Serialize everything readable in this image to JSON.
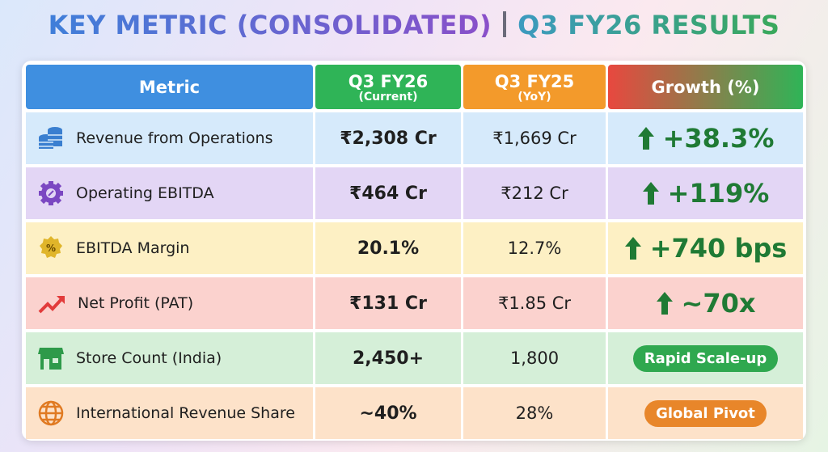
{
  "header": {
    "title_left": "KEY METRIC (CONSOLIDATED)",
    "title_right": "Q3 FY26 RESULTS"
  },
  "table": {
    "columns": [
      {
        "label": "Metric"
      },
      {
        "label": "Q3 FY26",
        "sub": "(Current)"
      },
      {
        "label": "Q3 FY25",
        "sub": "(YoY)"
      },
      {
        "label": "Growth (%)"
      }
    ],
    "rows": [
      {
        "metric": "Revenue from Operations",
        "current": "₹2,308 Cr",
        "previous": "₹1,669 Cr",
        "growth": "+38.3%",
        "growth_kind": "arrow"
      },
      {
        "metric": "Operating EBITDA",
        "current": "₹464 Cr",
        "previous": "₹212 Cr",
        "growth": "+119%",
        "growth_kind": "arrow"
      },
      {
        "metric": "EBITDA Margin",
        "current": "20.1%",
        "previous": "12.7%",
        "growth": "+740 bps",
        "growth_kind": "arrow"
      },
      {
        "metric": "Net Profit (PAT)",
        "current": "₹131 Cr",
        "previous": "₹1.85 Cr",
        "growth": "~70x",
        "growth_kind": "arrow"
      },
      {
        "metric": "Store Count (India)",
        "current": "2,450+",
        "previous": "1,800",
        "growth": "Rapid Scale-up",
        "growth_kind": "badge"
      },
      {
        "metric": "International Revenue Share",
        "current": "~40%",
        "previous": "28%",
        "growth": "Global Pivot",
        "growth_kind": "badge"
      }
    ]
  }
}
